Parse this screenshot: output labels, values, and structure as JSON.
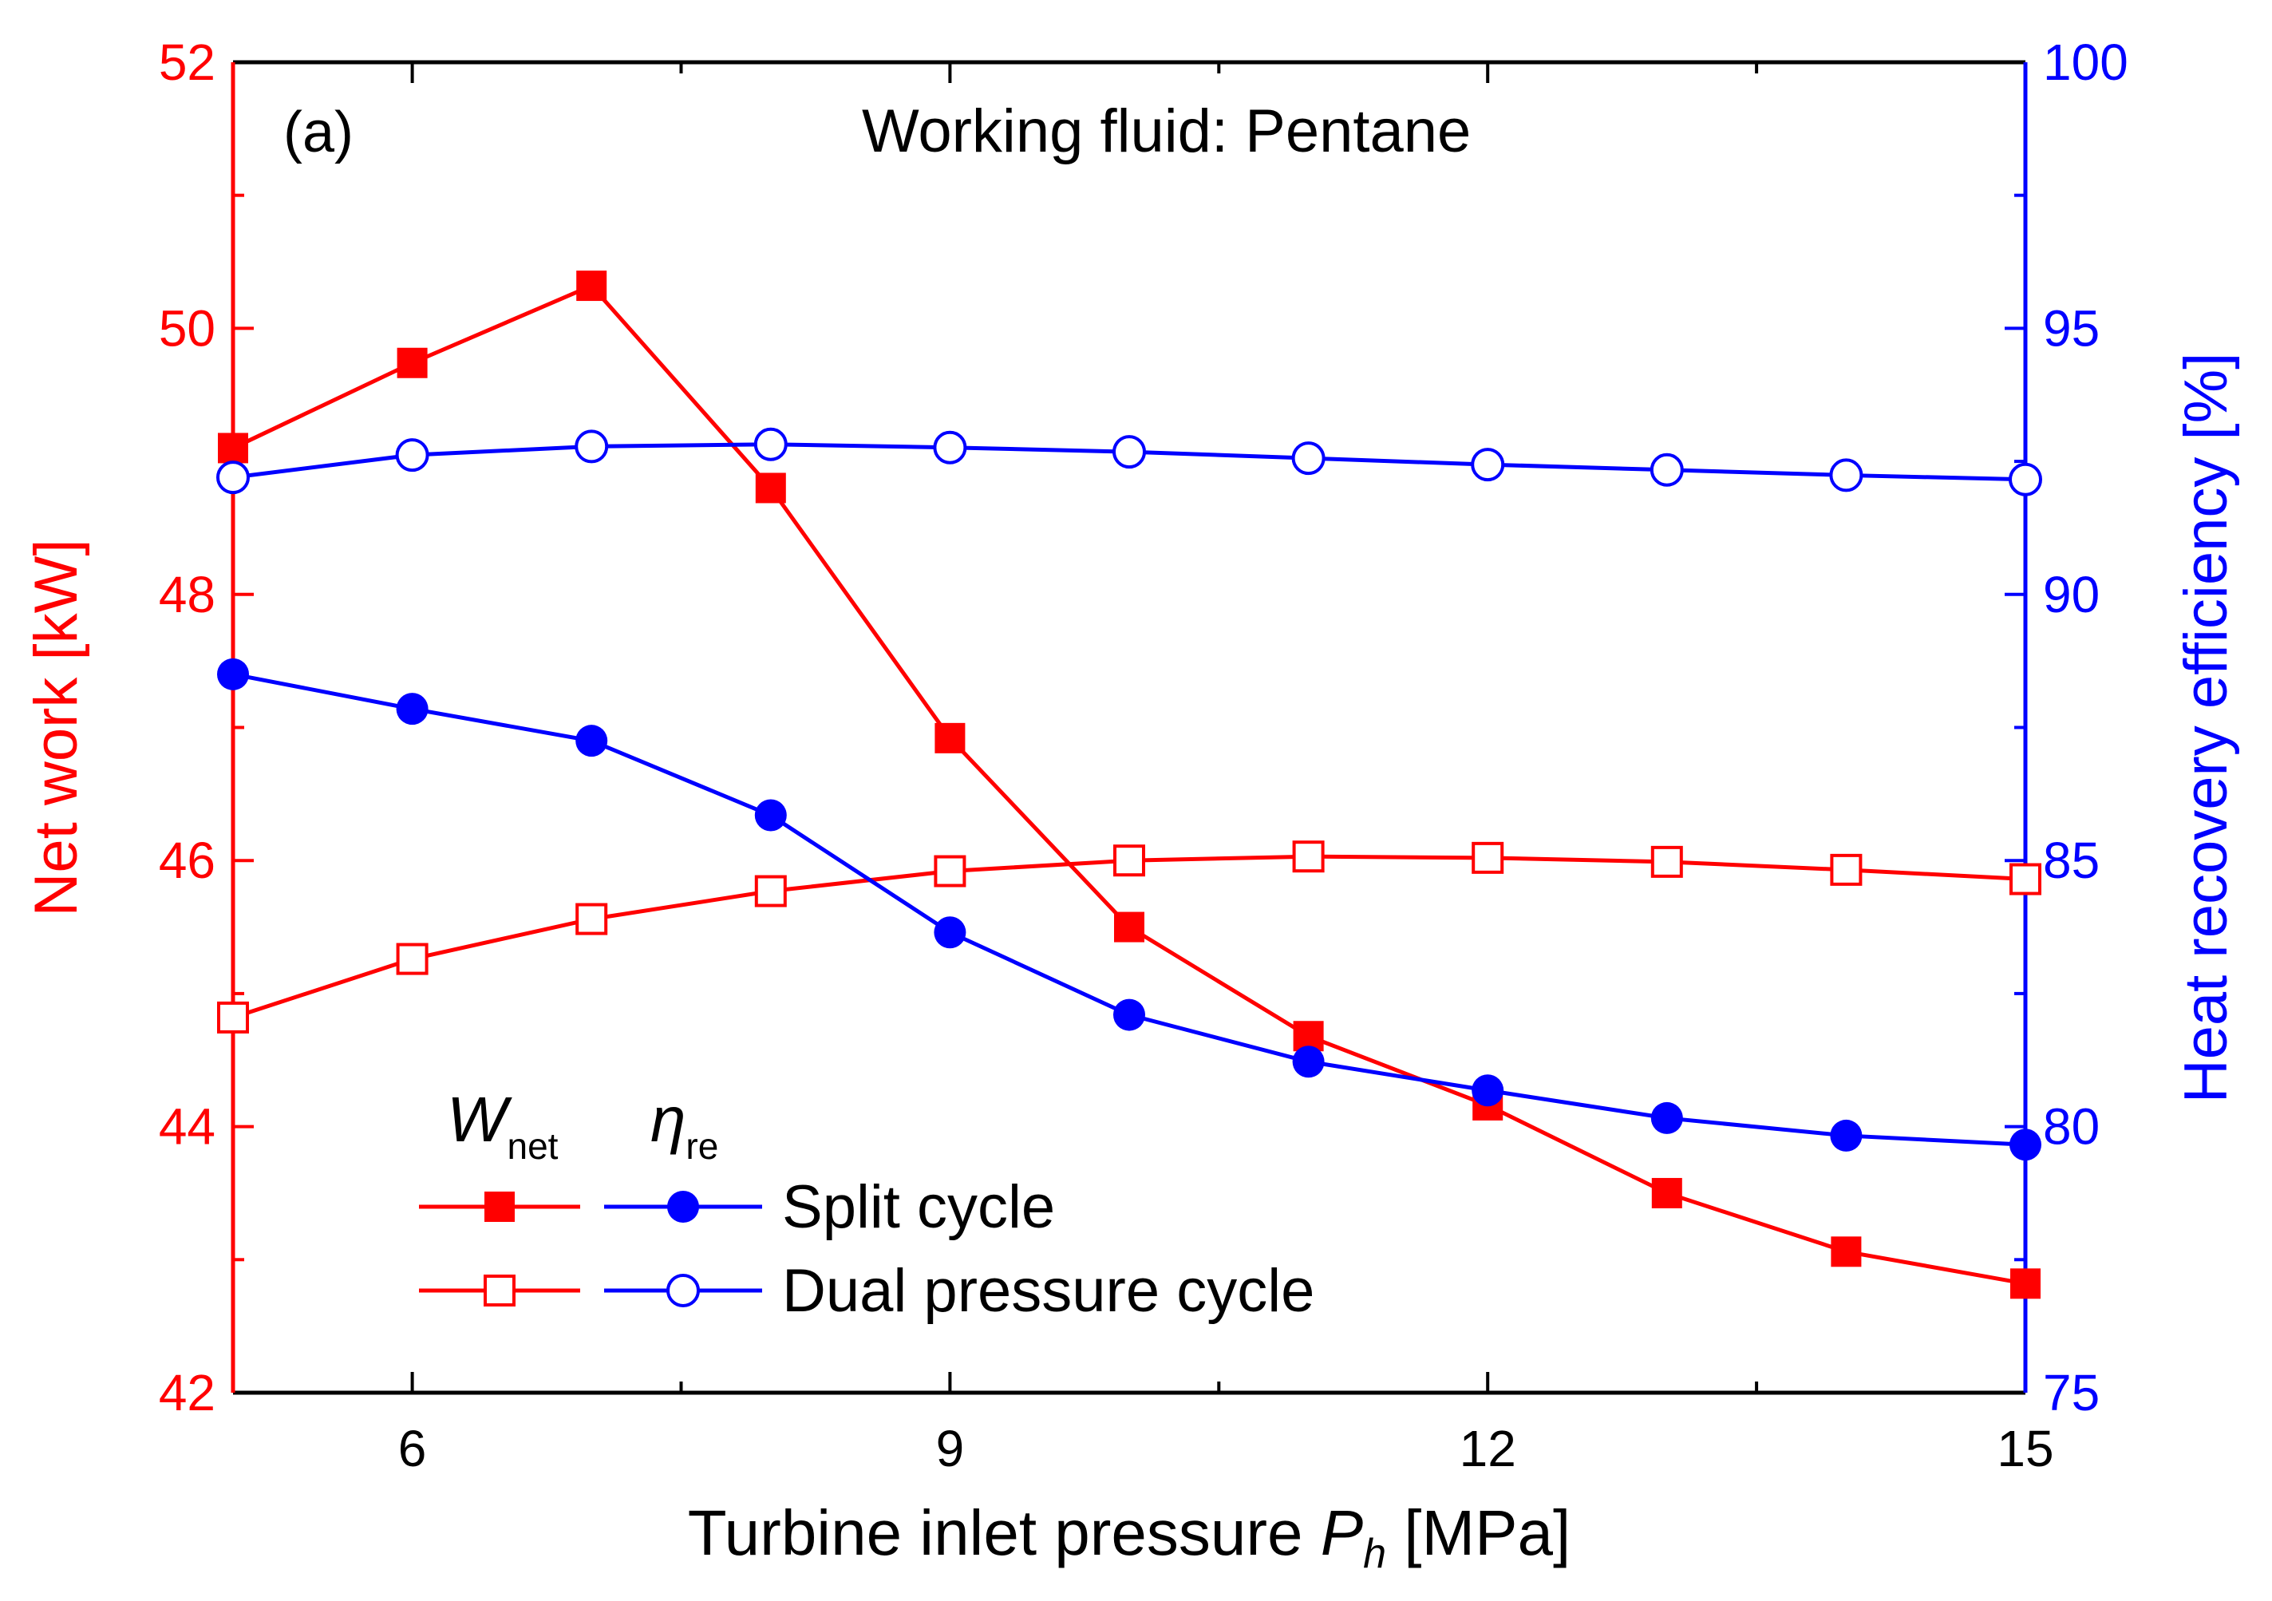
{
  "chart_data": {
    "type": "line",
    "panel_label": "(a)",
    "title": "Working fluid: Pentane",
    "xlabel_main": "Turbine inlet pressure ",
    "xlabel_var": "P",
    "xlabel_sub": "h",
    "xlabel_unit": " [MPa]",
    "ylabel_left": "Net work [kW]",
    "ylabel_right": "Heat recovery efficiency [%]",
    "xlim": [
      5,
      15
    ],
    "ylim_left": [
      42,
      52
    ],
    "ylim_right": [
      75,
      100
    ],
    "xticks": [
      6,
      9,
      12,
      15
    ],
    "yticks_left": [
      42,
      44,
      46,
      48,
      50,
      52
    ],
    "yticks_right": [
      75,
      80,
      85,
      90,
      95,
      100
    ],
    "x": [
      5,
      6,
      7,
      8,
      9,
      10,
      11,
      12,
      13,
      14,
      15
    ],
    "series": [
      {
        "id": "w-split",
        "name": "Split cycle W_net",
        "axis": "left",
        "color": "#ff0000",
        "marker": "square-filled",
        "values": [
          49.1,
          49.74,
          50.32,
          48.8,
          46.92,
          45.5,
          44.68,
          44.16,
          43.5,
          43.06,
          42.82
        ]
      },
      {
        "id": "w-dual",
        "name": "Dual pressure cycle W_net",
        "axis": "left",
        "color": "#ff0000",
        "marker": "square-open",
        "values": [
          44.82,
          45.26,
          45.56,
          45.77,
          45.92,
          46.0,
          46.03,
          46.02,
          45.99,
          45.93,
          45.86
        ]
      },
      {
        "id": "eta-split",
        "name": "Split cycle eta_re",
        "axis": "right",
        "color": "#0000ff",
        "marker": "circle-filled",
        "values": [
          88.5,
          87.85,
          87.25,
          85.85,
          83.65,
          82.1,
          81.22,
          80.68,
          80.16,
          79.83,
          79.66
        ]
      },
      {
        "id": "eta-dual",
        "name": "Dual pressure cycle eta_re",
        "axis": "right",
        "color": "#0000ff",
        "marker": "circle-open",
        "values": [
          92.2,
          92.62,
          92.78,
          92.82,
          92.76,
          92.68,
          92.56,
          92.44,
          92.34,
          92.24,
          92.16
        ]
      }
    ],
    "legend": {
      "placement": "bottom-left",
      "header_w": "W",
      "header_w_sub": "net",
      "header_eta": "η",
      "header_eta_sub": "re",
      "entries": [
        "Split cycle",
        "Dual pressure cycle"
      ]
    },
    "colors": {
      "left_axis": "#ff0000",
      "right_axis": "#0000ff",
      "frame": "#000000"
    }
  }
}
